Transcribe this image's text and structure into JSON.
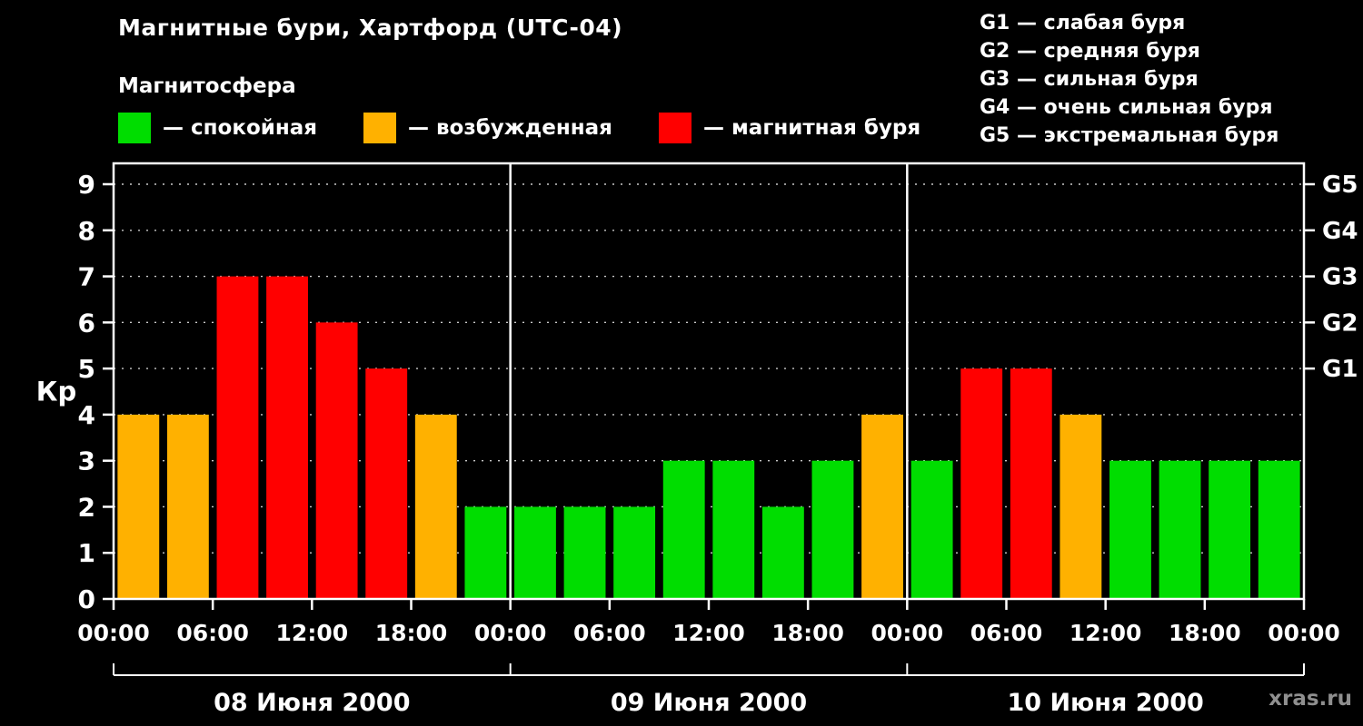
{
  "header": {
    "title": "Магнитные бури, Хартфорд (UTC-04)",
    "subtitle": "Магнитосфера"
  },
  "legend": {
    "items": [
      {
        "name": "quiet",
        "label": "— спокойная",
        "color": "#00dd00"
      },
      {
        "name": "excited",
        "label": "— возбужденная",
        "color": "#ffb100"
      },
      {
        "name": "storm",
        "label": "— магнитная буря",
        "color": "#ff0000"
      }
    ]
  },
  "g_legend": [
    "G1 — слабая буря",
    "G2 — средняя буря",
    "G3 — сильная буря",
    "G4 — очень сильная буря",
    "G5 — экстремальная буря"
  ],
  "watermark": "xras.ru",
  "chart_data": {
    "type": "bar",
    "title": "Магнитные бури, Хартфорд (UTC-04)",
    "ylabel": "Кр",
    "ylim": [
      0,
      9
    ],
    "yticks": [
      0,
      1,
      2,
      3,
      4,
      5,
      6,
      7,
      8,
      9
    ],
    "grid": "dashed horizontal lines at every integer Kp",
    "legend_position": "top",
    "bar_interval_hours": 3,
    "x_tick_labels_per_day": [
      "00:00",
      "06:00",
      "12:00",
      "18:00"
    ],
    "x_final_label": "00:00",
    "right_axis": [
      {
        "kp": 5,
        "label": "G1"
      },
      {
        "kp": 6,
        "label": "G2"
      },
      {
        "kp": 7,
        "label": "G3"
      },
      {
        "kp": 8,
        "label": "G4"
      },
      {
        "kp": 9,
        "label": "G5"
      }
    ],
    "days": [
      {
        "date": "08 Июня 2000",
        "values": [
          4,
          4,
          7,
          7,
          6,
          5,
          4,
          2
        ]
      },
      {
        "date": "09 Июня 2000",
        "values": [
          2,
          2,
          2,
          3,
          3,
          2,
          3,
          4
        ]
      },
      {
        "date": "10 Июня 2000",
        "values": [
          3,
          5,
          5,
          4,
          3,
          3,
          3,
          3
        ]
      }
    ],
    "color_rules": {
      "green_max": 3,
      "orange_value": 4,
      "red_min": 5
    },
    "colors": {
      "green": "#00dd00",
      "orange": "#ffb100",
      "red": "#ff0000"
    }
  }
}
